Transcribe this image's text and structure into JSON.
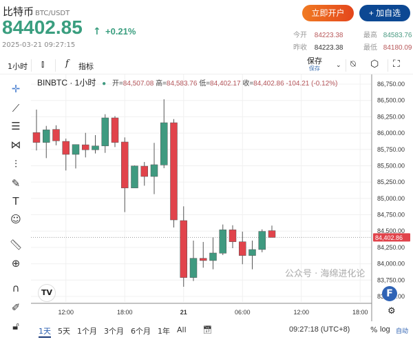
{
  "header": {
    "name": "比特币",
    "pair": "BTC/USDT",
    "price": "84402.85",
    "arrow": "↑",
    "change": "+0.21%",
    "datetime": "2025-03-21 09:27:15",
    "open_account": "立即开户",
    "add_watch": "+ 加自选",
    "stats": [
      {
        "label": "今开",
        "value": "84223.38"
      },
      {
        "label": "最高",
        "value": "84583.76"
      },
      {
        "label": "昨收",
        "value": "84223.38"
      },
      {
        "label": "最低",
        "value": "84180.09"
      }
    ]
  },
  "toolbar": {
    "interval": "1小时",
    "indicators": "指标",
    "save": "保存",
    "save_sub": "保存",
    "icons": [
      "candles-icon",
      "fx-icon",
      "chevron-down-icon",
      "alert-icon",
      "settings-icon",
      "fullscreen-icon"
    ]
  },
  "left_tools": [
    "crosshair-icon",
    "trendline-icon",
    "fib-icon",
    "pattern-icon",
    "measure-lines-icon",
    "brush-icon",
    "text-icon",
    "emoji-icon",
    "ruler-icon",
    "zoom-in-icon",
    "magnet-icon",
    "lock-pencil-icon",
    "unlock-icon"
  ],
  "legend": {
    "symbol": "BINBTC · 1小时",
    "open_label": "开=",
    "open": "84,507.08",
    "high_label": "高=",
    "high": "84,583.76",
    "low_label": "低=",
    "low": "84,402.17",
    "close_label": "收=",
    "close": "84,402.86",
    "change": "-104.21 (-0.12%)"
  },
  "chart_data": {
    "type": "candlestick",
    "interval": "1h",
    "ylim": [
      83375,
      86875
    ],
    "y_ticks": [
      "86,750.00",
      "86,500.00",
      "86,250.00",
      "86,000.00",
      "85,750.00",
      "85,500.00",
      "85,250.00",
      "85,000.00",
      "84,750.00",
      "84,500.00",
      "84,250.00",
      "84,000.00",
      "83,750.00",
      "83,500.00"
    ],
    "y_tick_values": [
      86750,
      86500,
      86250,
      86000,
      85750,
      85500,
      85250,
      85000,
      84750,
      84500,
      84250,
      84000,
      83750,
      83500
    ],
    "x_ticks": [
      "12:00",
      "18:00",
      "21",
      "06:00",
      "12:00",
      "18:00"
    ],
    "x": [
      "03-20 09:00",
      "10:00",
      "11:00",
      "12:00",
      "13:00",
      "14:00",
      "15:00",
      "16:00",
      "17:00",
      "18:00",
      "19:00",
      "20:00",
      "21:00",
      "22:00",
      "23:00",
      "03-21 00:00",
      "01:00",
      "02:00",
      "03:00",
      "04:00",
      "05:00",
      "06:00",
      "07:00",
      "08:00",
      "09:00"
    ],
    "ohlc": [
      [
        86008,
        86360,
        85734,
        85857
      ],
      [
        85857,
        86110,
        85617,
        86050
      ],
      [
        86057,
        86120,
        85814,
        85881
      ],
      [
        85874,
        85916,
        85428,
        85674
      ],
      [
        85674,
        85825,
        85459,
        85825
      ],
      [
        85821,
        86004,
        85628,
        85744
      ],
      [
        85744,
        85969,
        85688,
        85804
      ],
      [
        85804,
        86289,
        85698,
        86233
      ],
      [
        86233,
        86261,
        85786,
        85857
      ],
      [
        85864,
        85934,
        84791,
        85160
      ],
      [
        85160,
        85505,
        85160,
        85498
      ],
      [
        85494,
        85558,
        85195,
        85336
      ],
      [
        85336,
        85850,
        85065,
        85516
      ],
      [
        85512,
        86518,
        85463,
        86159
      ],
      [
        86159,
        86215,
        84555,
        84671
      ],
      [
        84661,
        84879,
        83648,
        83789
      ],
      [
        83789,
        84355,
        83736,
        84084
      ],
      [
        84084,
        84334,
        83940,
        84049
      ],
      [
        84049,
        84408,
        83915,
        84165
      ],
      [
        84161,
        84601,
        84133,
        84520
      ],
      [
        84520,
        84590,
        84239,
        84337
      ],
      [
        84337,
        84492,
        83993,
        84126
      ],
      [
        84126,
        84355,
        83915,
        84218
      ],
      [
        84218,
        84527,
        84176,
        84496
      ],
      [
        84507.08,
        84583.76,
        84402.17,
        84402.86
      ]
    ],
    "last_price": 84402.86,
    "last_price_label": "84,402.86",
    "grid": true,
    "up_color": "#3f9a80",
    "down_color": "#e1434b"
  },
  "ranges": [
    "1天",
    "5天",
    "1个月",
    "3个月",
    "6个月",
    "1年",
    "All"
  ],
  "footer": {
    "clock": "09:27:18 (UTC+8)",
    "percent": "%",
    "log": "log",
    "auto": "自动",
    "watermark": "公众号 · 海绵进化论"
  }
}
